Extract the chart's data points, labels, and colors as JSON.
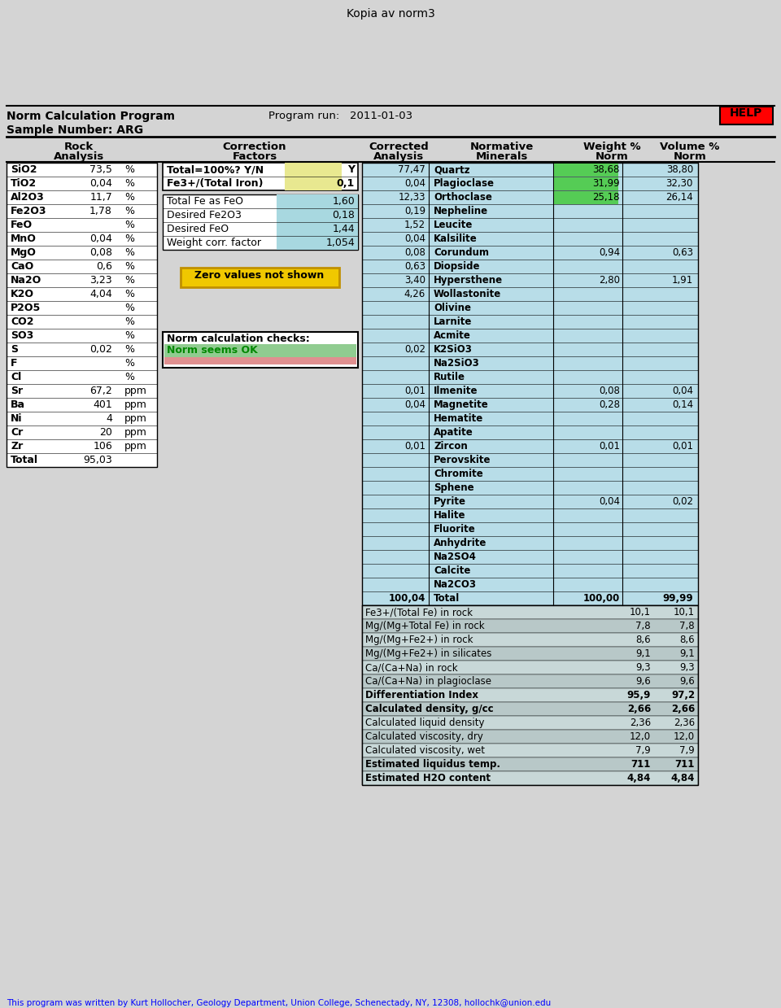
{
  "title": "Kopia av norm3",
  "program_name": "Norm Calculation Program",
  "program_run_label": "Program run:",
  "program_run_date": "2011-01-03",
  "sample_label": "Sample Number: ARG",
  "help_text": "HELP",
  "footer": "This program was written by Kurt Hollocher, Geology Department, Union College, Schenectady, NY, 12308, hollochk@union.edu",
  "rock_analysis": [
    [
      "SiO2",
      "73,5",
      "%"
    ],
    [
      "TiO2",
      "0,04",
      "%"
    ],
    [
      "Al2O3",
      "11,7",
      "%"
    ],
    [
      "Fe2O3",
      "1,78",
      "%"
    ],
    [
      "FeO",
      "",
      "%"
    ],
    [
      "MnO",
      "0,04",
      "%"
    ],
    [
      "MgO",
      "0,08",
      "%"
    ],
    [
      "CaO",
      "0,6",
      "%"
    ],
    [
      "Na2O",
      "3,23",
      "%"
    ],
    [
      "K2O",
      "4,04",
      "%"
    ],
    [
      "P2O5",
      "",
      "%"
    ],
    [
      "CO2",
      "",
      "%"
    ],
    [
      "SO3",
      "",
      "%"
    ],
    [
      "S",
      "0,02",
      "%"
    ],
    [
      "F",
      "",
      "%"
    ],
    [
      "Cl",
      "",
      "%"
    ],
    [
      "Sr",
      "67,2",
      "ppm"
    ],
    [
      "Ba",
      "401",
      "ppm"
    ],
    [
      "Ni",
      "4",
      "ppm"
    ],
    [
      "Cr",
      "20",
      "ppm"
    ],
    [
      "Zr",
      "106",
      "ppm"
    ],
    [
      "Total",
      "95,03",
      ""
    ]
  ],
  "correction_yn": {
    "label": "Total=100%? Y/N",
    "value": "Y"
  },
  "correction_fe": {
    "label": "Fe3+/(Total Iron)",
    "value": "0,1"
  },
  "correction_box": [
    {
      "label": "Total Fe as FeO",
      "value": "1,60"
    },
    {
      "label": "Desired Fe2O3",
      "value": "0,18"
    },
    {
      "label": "Desired FeO",
      "value": "1,44"
    },
    {
      "label": "Weight corr. factor",
      "value": "1,054"
    }
  ],
  "zero_values_text": "Zero values not shown",
  "norm_checks_title": "Norm calculation checks:",
  "norm_checks_ok": "Norm seems OK",
  "normative_minerals": [
    "Quartz",
    "Plagioclase",
    "Orthoclase",
    "Nepheline",
    "Leucite",
    "Kalsilite",
    "Corundum",
    "Diopside",
    "Hypersthene",
    "Wollastonite",
    "Olivine",
    "Larnite",
    "Acmite",
    "K2SiO3",
    "Na2SiO3",
    "Rutile",
    "Ilmenite",
    "Magnetite",
    "Hematite",
    "Apatite",
    "Zircon",
    "Perovskite",
    "Chromite",
    "Sphene",
    "Pyrite",
    "Halite",
    "Fluorite",
    "Anhydrite",
    "Na2SO4",
    "Calcite",
    "Na2CO3",
    "Total"
  ],
  "corr_val_map": {
    "Quartz": "77,47",
    "Plagioclase": "0,04",
    "Orthoclase": "12,33",
    "Nepheline": "0,19",
    "Leucite": "1,52",
    "Kalsilite": "0,04",
    "Corundum": "0,08",
    "Diopside": "0,63",
    "Hypersthene": "3,40",
    "Wollastonite": "4,26",
    "K2SiO3": "0,02",
    "Ilmenite": "0,01",
    "Magnetite": "0,04",
    "Zircon": "0,01",
    "Total": "100,04"
  },
  "weight_pct": [
    "38,68",
    "31,99",
    "25,18",
    "",
    "",
    "",
    "0,94",
    "",
    "2,80",
    "",
    "",
    "",
    "",
    "",
    "",
    "",
    "0,08",
    "0,28",
    "",
    "",
    "0,01",
    "",
    "",
    "",
    "0,04",
    "",
    "",
    "",
    "",
    "",
    "",
    "100,00"
  ],
  "volume_pct": [
    "38,80",
    "32,30",
    "26,14",
    "",
    "",
    "",
    "0,63",
    "",
    "1,91",
    "",
    "",
    "",
    "",
    "",
    "",
    "",
    "0,04",
    "0,14",
    "",
    "",
    "0,01",
    "",
    "",
    "",
    "0,02",
    "",
    "",
    "",
    "",
    "",
    "",
    "99,99"
  ],
  "highlighted_minerals": [
    0,
    1,
    2
  ],
  "highlight_color": "#55cc55",
  "summary_rows": [
    {
      "label": "Fe3+/(Total Fe) in rock",
      "col1": "10,1",
      "col2": "10,1",
      "bold": false
    },
    {
      "label": "Mg/(Mg+Total Fe) in rock",
      "col1": "7,8",
      "col2": "7,8",
      "bold": false
    },
    {
      "label": "Mg/(Mg+Fe2+) in rock",
      "col1": "8,6",
      "col2": "8,6",
      "bold": false
    },
    {
      "label": "Mg/(Mg+Fe2+) in silicates",
      "col1": "9,1",
      "col2": "9,1",
      "bold": false
    },
    {
      "label": "Ca/(Ca+Na) in rock",
      "col1": "9,3",
      "col2": "9,3",
      "bold": false
    },
    {
      "label": "Ca/(Ca+Na) in plagioclase",
      "col1": "9,6",
      "col2": "9,6",
      "bold": false
    },
    {
      "label": "Differentiation Index",
      "col1": "95,9",
      "col2": "97,2",
      "bold": true
    },
    {
      "label": "Calculated density, g/cc",
      "col1": "2,66",
      "col2": "2,66",
      "bold": true
    },
    {
      "label": "Calculated liquid density",
      "col1": "2,36",
      "col2": "2,36",
      "bold": false
    },
    {
      "label": "Calculated viscosity, dry",
      "col1": "12,0",
      "col2": "12,0",
      "bold": false
    },
    {
      "label": "Calculated viscosity, wet",
      "col1": "7,9",
      "col2": "7,9",
      "bold": false
    },
    {
      "label": "Estimated liquidus temp.",
      "col1": "711",
      "col2": "711",
      "bold": true
    },
    {
      "label": "Estimated H2O content",
      "col1": "4,84",
      "col2": "4,84",
      "bold": true
    }
  ],
  "bg_color": "#d4d4d4",
  "table_cyan_bg": "#b8dde8",
  "yellow_yn_bg": "#e8e890",
  "cyan_corr_bg": "#a8d8e0",
  "zero_box_fill": "#f0c800",
  "zero_box_border": "#c09000",
  "green_ok_bg": "#90cc90",
  "red_bad_bg": "#e09090"
}
